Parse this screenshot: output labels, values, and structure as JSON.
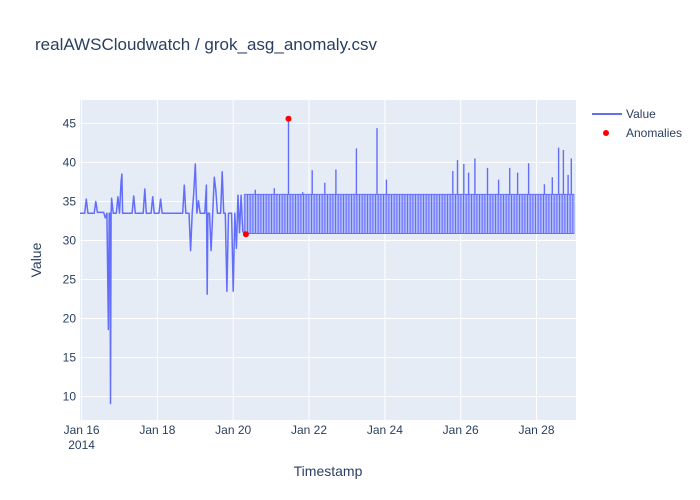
{
  "chart_data": {
    "type": "line",
    "title": "realAWSCloudwatch / grok_asg_anomaly.csv",
    "xlabel": "Timestamp",
    "ylabel": "Value",
    "x_range_days": [
      "2014-01-15T23:00",
      "2014-01-29T01:00"
    ],
    "ylim": [
      7.0,
      48.0
    ],
    "grid": true,
    "legend_position": "top-right",
    "x_ticks": [
      {
        "date": "2014-01-16",
        "label": "Jan 16",
        "sublabel": "2014"
      },
      {
        "date": "2014-01-18",
        "label": "Jan 18"
      },
      {
        "date": "2014-01-20",
        "label": "Jan 20"
      },
      {
        "date": "2014-01-22",
        "label": "Jan 22"
      },
      {
        "date": "2014-01-24",
        "label": "Jan 24"
      },
      {
        "date": "2014-01-26",
        "label": "Jan 26"
      },
      {
        "date": "2014-01-28",
        "label": "Jan 28"
      }
    ],
    "y_ticks": [
      10,
      15,
      20,
      25,
      30,
      35,
      40,
      45
    ],
    "series": [
      {
        "name": "Value",
        "color": "#636efa",
        "mode": "lines",
        "points": [
          [
            "2014-01-15T23:00",
            33.5
          ],
          [
            "2014-01-16T02:00",
            33.5
          ],
          [
            "2014-01-16T03:00",
            35.3
          ],
          [
            "2014-01-16T04:00",
            33.5
          ],
          [
            "2014-01-16T08:00",
            33.5
          ],
          [
            "2014-01-16T09:00",
            35.0
          ],
          [
            "2014-01-16T10:00",
            33.6
          ],
          [
            "2014-01-16T14:00",
            33.6
          ],
          [
            "2014-01-16T15:00",
            32.9
          ],
          [
            "2014-01-16T16:00",
            33.5
          ],
          [
            "2014-01-16T17:00",
            18.6
          ],
          [
            "2014-01-16T17:30",
            33.5
          ],
          [
            "2014-01-16T18:00",
            33.5
          ],
          [
            "2014-01-16T18:20",
            9.1
          ],
          [
            "2014-01-16T18:40",
            33.5
          ],
          [
            "2014-01-16T19:00",
            35.4
          ],
          [
            "2014-01-16T20:00",
            33.5
          ],
          [
            "2014-01-16T22:00",
            33.5
          ],
          [
            "2014-01-16T23:00",
            35.6
          ],
          [
            "2014-01-17T00:00",
            33.5
          ],
          [
            "2014-01-17T01:00",
            37.6
          ],
          [
            "2014-01-17T01:30",
            38.5
          ],
          [
            "2014-01-17T02:00",
            33.5
          ],
          [
            "2014-01-17T08:00",
            33.5
          ],
          [
            "2014-01-17T09:00",
            35.7
          ],
          [
            "2014-01-17T10:00",
            33.5
          ],
          [
            "2014-01-17T15:00",
            33.5
          ],
          [
            "2014-01-17T16:00",
            36.6
          ],
          [
            "2014-01-17T17:00",
            33.5
          ],
          [
            "2014-01-17T20:00",
            33.5
          ],
          [
            "2014-01-17T21:00",
            35.6
          ],
          [
            "2014-01-17T22:00",
            33.5
          ],
          [
            "2014-01-18T01:00",
            33.5
          ],
          [
            "2014-01-18T02:00",
            35.3
          ],
          [
            "2014-01-18T03:00",
            33.5
          ],
          [
            "2014-01-18T16:00",
            33.5
          ],
          [
            "2014-01-18T17:00",
            37.1
          ],
          [
            "2014-01-18T18:00",
            33.5
          ],
          [
            "2014-01-18T20:00",
            33.5
          ],
          [
            "2014-01-18T21:00",
            28.7
          ],
          [
            "2014-01-18T22:00",
            33.5
          ],
          [
            "2014-01-18T23:00",
            36.0
          ],
          [
            "2014-01-19T00:00",
            39.8
          ],
          [
            "2014-01-19T01:00",
            33.5
          ],
          [
            "2014-01-19T02:00",
            35.1
          ],
          [
            "2014-01-19T03:00",
            33.5
          ],
          [
            "2014-01-19T06:00",
            33.5
          ],
          [
            "2014-01-19T07:00",
            37.1
          ],
          [
            "2014-01-19T07:30",
            23.1
          ],
          [
            "2014-01-19T08:00",
            33.5
          ],
          [
            "2014-01-19T09:00",
            33.5
          ],
          [
            "2014-01-19T10:00",
            28.7
          ],
          [
            "2014-01-19T11:00",
            33.5
          ],
          [
            "2014-01-19T12:00",
            38.1
          ],
          [
            "2014-01-19T13:00",
            36.5
          ],
          [
            "2014-01-19T14:00",
            33.5
          ],
          [
            "2014-01-19T16:00",
            33.5
          ],
          [
            "2014-01-19T17:00",
            38.8
          ],
          [
            "2014-01-19T18:00",
            33.5
          ],
          [
            "2014-01-19T19:00",
            33.5
          ],
          [
            "2014-01-19T20:00",
            23.5
          ],
          [
            "2014-01-19T21:00",
            33.5
          ],
          [
            "2014-01-19T23:00",
            33.5
          ],
          [
            "2014-01-20T00:00",
            23.5
          ],
          [
            "2014-01-20T01:00",
            33.5
          ],
          [
            "2014-01-20T02:00",
            29.0
          ],
          [
            "2014-01-20T03:00",
            35.8
          ],
          [
            "2014-01-20T04:00",
            31.0
          ],
          [
            "2014-01-20T05:00",
            35.8
          ],
          [
            "2014-01-20T06:00",
            31.2
          ],
          [
            "2014-01-20T07:00",
            30.8
          ]
        ],
        "dense_band": {
          "from": "2014-01-20T07:00",
          "to": "2014-01-29T00:00",
          "low": 30.9,
          "high": 35.9
        },
        "spikes": [
          [
            "2014-01-20T14:00",
            36.5
          ],
          [
            "2014-01-21T02:00",
            36.7
          ],
          [
            "2014-01-21T11:00",
            45.6
          ],
          [
            "2014-01-21T20:00",
            36.2
          ],
          [
            "2014-01-22T02:00",
            39.0
          ],
          [
            "2014-01-22T10:00",
            37.4
          ],
          [
            "2014-01-22T17:00",
            39.1
          ],
          [
            "2014-01-23T06:00",
            41.8
          ],
          [
            "2014-01-23T19:00",
            44.4
          ],
          [
            "2014-01-24T01:00",
            37.8
          ],
          [
            "2014-01-25T19:00",
            38.9
          ],
          [
            "2014-01-25T22:00",
            40.3
          ],
          [
            "2014-01-26T02:00",
            39.8
          ],
          [
            "2014-01-26T05:00",
            38.7
          ],
          [
            "2014-01-26T09:00",
            40.5
          ],
          [
            "2014-01-26T17:00",
            39.3
          ],
          [
            "2014-01-27T00:00",
            37.8
          ],
          [
            "2014-01-27T07:00",
            39.3
          ],
          [
            "2014-01-27T12:00",
            38.7
          ],
          [
            "2014-01-27T19:00",
            39.9
          ],
          [
            "2014-01-28T05:00",
            37.2
          ],
          [
            "2014-01-28T10:00",
            38.1
          ],
          [
            "2014-01-28T14:00",
            41.9
          ],
          [
            "2014-01-28T17:00",
            41.6
          ],
          [
            "2014-01-28T20:00",
            38.4
          ],
          [
            "2014-01-28T22:00",
            40.5
          ]
        ]
      },
      {
        "name": "Anomalies",
        "color": "#ff0000",
        "mode": "markers",
        "points": [
          [
            "2014-01-20T08:00",
            30.8
          ],
          [
            "2014-01-21T11:00",
            45.6
          ]
        ]
      }
    ]
  }
}
